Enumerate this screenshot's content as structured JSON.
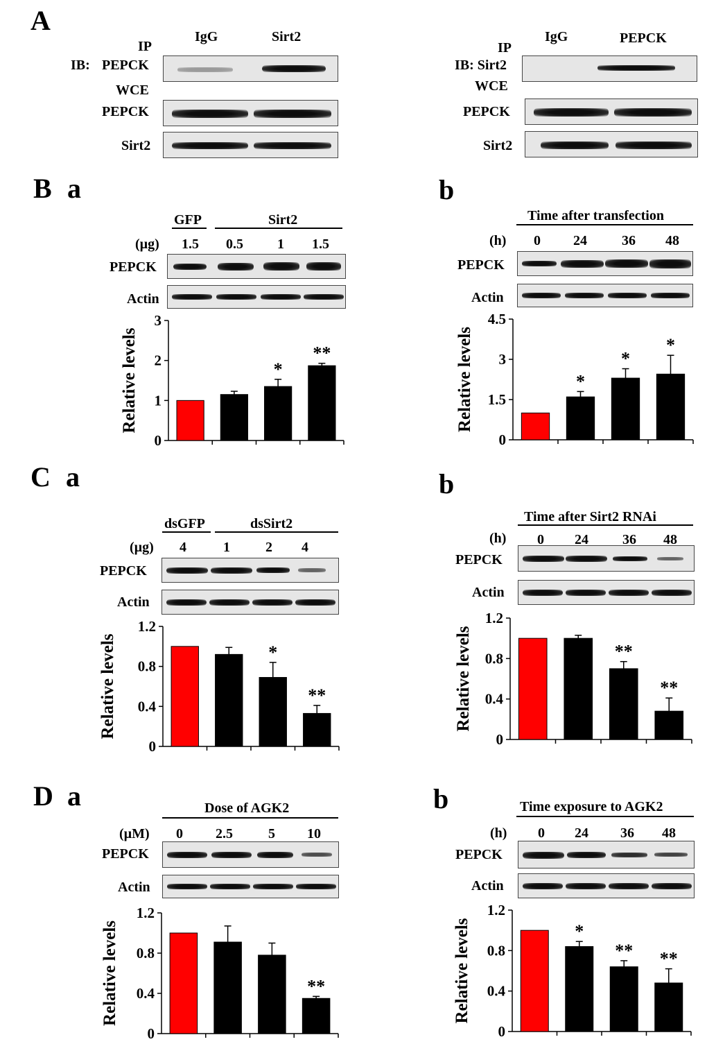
{
  "colors": {
    "control_bar": "#ff0000",
    "treat_bar": "#000000"
  },
  "panels": {
    "A": {
      "letter": "A",
      "left": {
        "ip": "IP",
        "ib": "IB:",
        "ib_target": "PEPCK",
        "wce": "WCE",
        "rows": [
          "PEPCK",
          "Sirt2"
        ],
        "lanes": [
          "IgG",
          "Sirt2"
        ]
      },
      "right": {
        "ip": "IP",
        "ib": "IB: Sirt2",
        "wce": "WCE",
        "rows": [
          "PEPCK",
          "Sirt2"
        ],
        "lanes": [
          "IgG",
          "PEPCK"
        ]
      }
    },
    "B": {
      "letter": "B",
      "a": {
        "sub": "a",
        "group1": "GFP",
        "group2": "Sirt2",
        "unit": "(µg)",
        "lanes": [
          "1.5",
          "0.5",
          "1",
          "1.5"
        ],
        "rows": [
          "PEPCK",
          "Actin"
        ]
      },
      "b": {
        "sub": "b",
        "header": "Time after transfection",
        "unit": "(h)",
        "lanes": [
          "0",
          "24",
          "36",
          "48"
        ],
        "rows": [
          "PEPCK",
          "Actin"
        ]
      }
    },
    "C": {
      "letter": "C",
      "a": {
        "sub": "a",
        "group1": "dsGFP",
        "group2": "dsSirt2",
        "unit": "(µg)",
        "lanes": [
          "4",
          "1",
          "2",
          "4"
        ],
        "rows": [
          "PEPCK",
          "Actin"
        ]
      },
      "b": {
        "sub": "b",
        "header": "Time after Sirt2 RNAi",
        "unit": "(h)",
        "lanes": [
          "0",
          "24",
          "36",
          "48"
        ],
        "rows": [
          "PEPCK",
          "Actin"
        ]
      }
    },
    "D": {
      "letter": "D",
      "a": {
        "sub": "a",
        "header": "Dose of AGK2",
        "unit": "(µM)",
        "lanes": [
          "0",
          "2.5",
          "5",
          "10"
        ],
        "rows": [
          "PEPCK",
          "Actin"
        ]
      },
      "b": {
        "sub": "b",
        "header": "Time exposure to AGK2",
        "unit": "(h)",
        "lanes": [
          "0",
          "24",
          "36",
          "48"
        ],
        "rows": [
          "PEPCK",
          "Actin"
        ]
      }
    }
  },
  "chart_data": [
    {
      "id": "Ba",
      "type": "bar",
      "ylabel": "Relative levels",
      "ylim": [
        0,
        3
      ],
      "ticks": [
        "0",
        "1",
        "2",
        "3"
      ],
      "values": [
        1.0,
        1.15,
        1.35,
        1.87
      ],
      "errors": [
        0,
        0.08,
        0.18,
        0.06
      ],
      "sig": [
        "",
        "",
        "*",
        "**"
      ]
    },
    {
      "id": "Bb",
      "type": "bar",
      "ylabel": "Relative levels",
      "ylim": [
        0,
        4.5
      ],
      "ticks": [
        "0",
        "1.5",
        "3",
        "4.5"
      ],
      "values": [
        1.0,
        1.6,
        2.3,
        2.45
      ],
      "errors": [
        0,
        0.2,
        0.35,
        0.7
      ],
      "sig": [
        "",
        "*",
        "*",
        "*"
      ]
    },
    {
      "id": "Ca",
      "type": "bar",
      "ylabel": "Relative levels",
      "ylim": [
        0,
        1.2
      ],
      "ticks": [
        "0",
        "0.4",
        "0.8",
        "1.2"
      ],
      "values": [
        1.0,
        0.92,
        0.69,
        0.33
      ],
      "errors": [
        0,
        0.07,
        0.15,
        0.08
      ],
      "sig": [
        "",
        "",
        "*",
        "**"
      ]
    },
    {
      "id": "Cb",
      "type": "bar",
      "ylabel": "Relative levels",
      "ylim": [
        0,
        1.2
      ],
      "ticks": [
        "0",
        "0.4",
        "0.8",
        "1.2"
      ],
      "values": [
        1.0,
        1.0,
        0.7,
        0.28
      ],
      "errors": [
        0,
        0.03,
        0.07,
        0.13
      ],
      "sig": [
        "",
        "",
        "**",
        "**"
      ]
    },
    {
      "id": "Da",
      "type": "bar",
      "ylabel": "Relative levels",
      "ylim": [
        0,
        1.2
      ],
      "ticks": [
        "0",
        "0.4",
        "0.8",
        "1.2"
      ],
      "values": [
        1.0,
        0.91,
        0.78,
        0.35
      ],
      "errors": [
        0,
        0.16,
        0.12,
        0.02
      ],
      "sig": [
        "",
        "",
        "",
        "**"
      ]
    },
    {
      "id": "Db",
      "type": "bar",
      "ylabel": "Relative levels",
      "ylim": [
        0,
        1.2
      ],
      "ticks": [
        "0",
        "0.4",
        "0.8",
        "1.2"
      ],
      "values": [
        1.0,
        0.84,
        0.64,
        0.48
      ],
      "errors": [
        0,
        0.05,
        0.06,
        0.14
      ],
      "sig": [
        "",
        "*",
        "**",
        "**"
      ]
    }
  ]
}
